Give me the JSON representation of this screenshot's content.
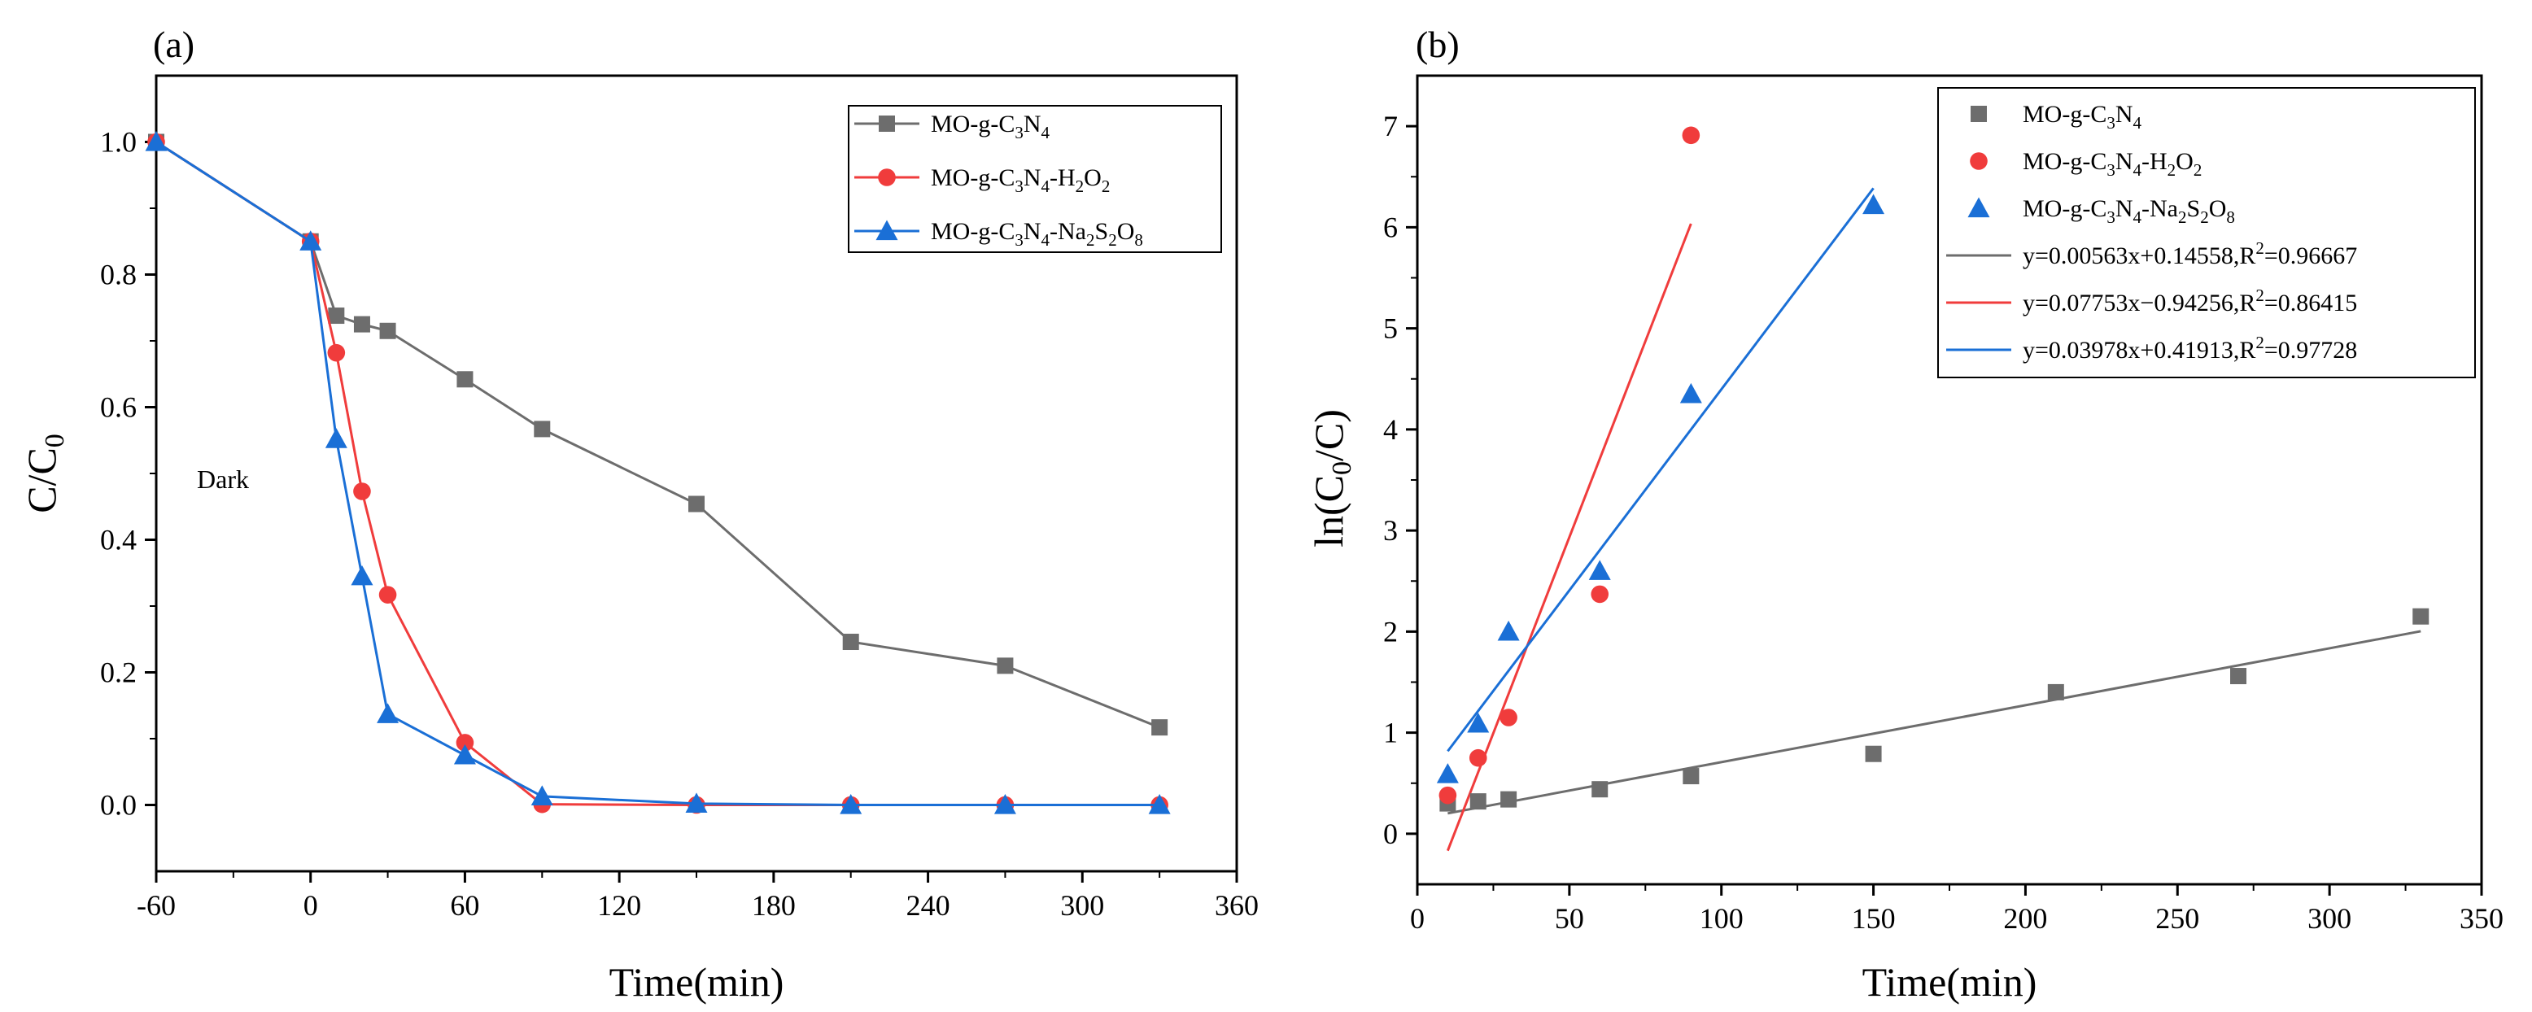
{
  "chart_data": [
    {
      "panel_label": "(a)",
      "type": "line",
      "xlabel": "Time(min)",
      "ylabel": "C/C",
      "ylabel_sub": "0",
      "xlim": [
        -60,
        360
      ],
      "ylim": [
        -0.1,
        1.1
      ],
      "xticks": [
        -60,
        0,
        60,
        120,
        180,
        240,
        300,
        360
      ],
      "yticks": [
        0.0,
        0.2,
        0.4,
        0.6,
        0.8,
        1.0
      ],
      "xtick_labels": [
        "-60",
        "0",
        "60",
        "120",
        "180",
        "240",
        "300",
        "360"
      ],
      "ytick_labels": [
        "0.0",
        "0.2",
        "0.4",
        "0.6",
        "0.8",
        "1.0"
      ],
      "annotation": "Dark",
      "legend_position": "top-right",
      "series": [
        {
          "name": "MO-g-C3N4",
          "legend_parts": [
            [
              "MO-g-C",
              ""
            ],
            [
              "3",
              "sub"
            ],
            [
              "N",
              ""
            ],
            [
              "4",
              "sub"
            ]
          ],
          "color": "#6d6d6d",
          "marker": "square",
          "x": [
            -60,
            0,
            10,
            20,
            30,
            60,
            90,
            150,
            210,
            270,
            330
          ],
          "values": [
            1.0,
            0.85,
            0.738,
            0.725,
            0.715,
            0.642,
            0.567,
            0.454,
            0.246,
            0.21,
            0.117
          ]
        },
        {
          "name": "MO-g-C3N4-H2O2",
          "legend_parts": [
            [
              "MO-g-C",
              ""
            ],
            [
              "3",
              "sub"
            ],
            [
              "N",
              ""
            ],
            [
              "4",
              "sub"
            ],
            [
              "-H",
              ""
            ],
            [
              "2",
              "sub"
            ],
            [
              "O",
              ""
            ],
            [
              "2",
              "sub"
            ]
          ],
          "color": "#f03c3c",
          "marker": "circle",
          "x": [
            -60,
            0,
            10,
            20,
            30,
            60,
            90,
            150,
            210,
            270,
            330
          ],
          "values": [
            1.0,
            0.85,
            0.682,
            0.473,
            0.317,
            0.094,
            0.001,
            0.0,
            0.0,
            0.0,
            0.0
          ]
        },
        {
          "name": "MO-g-C3N4-Na2S2O8",
          "legend_parts": [
            [
              "MO-g-C",
              ""
            ],
            [
              "3",
              "sub"
            ],
            [
              "N",
              ""
            ],
            [
              "4",
              "sub"
            ],
            [
              "-Na",
              ""
            ],
            [
              "2",
              "sub"
            ],
            [
              "S",
              ""
            ],
            [
              "2",
              "sub"
            ],
            [
              "O",
              ""
            ],
            [
              "8",
              "sub"
            ]
          ],
          "color": "#1a6fd6",
          "marker": "triangle",
          "x": [
            -60,
            0,
            10,
            20,
            30,
            60,
            90,
            150,
            210,
            270,
            330
          ],
          "values": [
            1.0,
            0.85,
            0.552,
            0.345,
            0.137,
            0.075,
            0.013,
            0.002,
            0.0,
            0.0,
            0.0
          ]
        }
      ]
    },
    {
      "panel_label": "(b)",
      "type": "scatter",
      "xlabel": "Time(min)",
      "ylabel": "ln(C",
      "ylabel_sub": "0",
      "ylabel_end": "/C)",
      "xlim": [
        0,
        350
      ],
      "ylim": [
        -0.5,
        7.5
      ],
      "xticks": [
        0,
        50,
        100,
        150,
        200,
        250,
        300,
        350
      ],
      "yticks": [
        0,
        1,
        2,
        3,
        4,
        5,
        6,
        7
      ],
      "xtick_labels": [
        "0",
        "50",
        "100",
        "150",
        "200",
        "250",
        "300",
        "350"
      ],
      "ytick_labels": [
        "0",
        "1",
        "2",
        "3",
        "4",
        "5",
        "6",
        "7"
      ],
      "legend_position": "top-right",
      "series": [
        {
          "name": "MO-g-C3N4",
          "legend_parts": [
            [
              "MO-g-C",
              ""
            ],
            [
              "3",
              "sub"
            ],
            [
              "N",
              ""
            ],
            [
              "4",
              "sub"
            ]
          ],
          "color": "#6d6d6d",
          "marker": "square",
          "x": [
            10,
            20,
            30,
            60,
            90,
            150,
            210,
            270,
            330
          ],
          "values": [
            0.3,
            0.32,
            0.34,
            0.44,
            0.57,
            0.79,
            1.4,
            1.56,
            2.15
          ]
        },
        {
          "name": "MO-g-C3N4-H2O2",
          "legend_parts": [
            [
              "MO-g-C",
              ""
            ],
            [
              "3",
              "sub"
            ],
            [
              "N",
              ""
            ],
            [
              "4",
              "sub"
            ],
            [
              "-H",
              ""
            ],
            [
              "2",
              "sub"
            ],
            [
              "O",
              ""
            ],
            [
              "2",
              "sub"
            ]
          ],
          "color": "#f03c3c",
          "marker": "circle",
          "x": [
            10,
            20,
            30,
            60,
            90
          ],
          "values": [
            0.38,
            0.75,
            1.15,
            2.37,
            6.91
          ]
        },
        {
          "name": "MO-g-C3N4-Na2S2O8",
          "legend_parts": [
            [
              "MO-g-C",
              ""
            ],
            [
              "3",
              "sub"
            ],
            [
              "N",
              ""
            ],
            [
              "4",
              "sub"
            ],
            [
              "-Na",
              ""
            ],
            [
              "2",
              "sub"
            ],
            [
              "S",
              ""
            ],
            [
              "2",
              "sub"
            ],
            [
              "O",
              ""
            ],
            [
              "8",
              "sub"
            ]
          ],
          "color": "#1a6fd6",
          "marker": "triangle",
          "x": [
            10,
            20,
            30,
            60,
            90,
            150
          ],
          "values": [
            0.59,
            1.09,
            2.0,
            2.6,
            4.35,
            6.22
          ]
        }
      ],
      "fits": [
        {
          "color": "#6d6d6d",
          "slope": 0.00563,
          "intercept": 0.14558,
          "x_range": [
            10,
            330
          ],
          "label_parts": [
            [
              "y=0.00563x+0.14558,R",
              ""
            ],
            [
              "2",
              "sup"
            ],
            [
              "=0.96667",
              ""
            ]
          ]
        },
        {
          "color": "#f03c3c",
          "slope": 0.07753,
          "intercept": -0.94256,
          "x_range": [
            10,
            90
          ],
          "label_parts": [
            [
              "y=0.07753x−0.94256,R",
              ""
            ],
            [
              "2",
              "sup"
            ],
            [
              "=0.86415",
              ""
            ]
          ]
        },
        {
          "color": "#1a6fd6",
          "slope": 0.03978,
          "intercept": 0.41913,
          "x_range": [
            10,
            150
          ],
          "label_parts": [
            [
              "y=0.03978x+0.41913,R",
              ""
            ],
            [
              "2",
              "sup"
            ],
            [
              "=0.97728",
              ""
            ]
          ]
        }
      ]
    }
  ]
}
